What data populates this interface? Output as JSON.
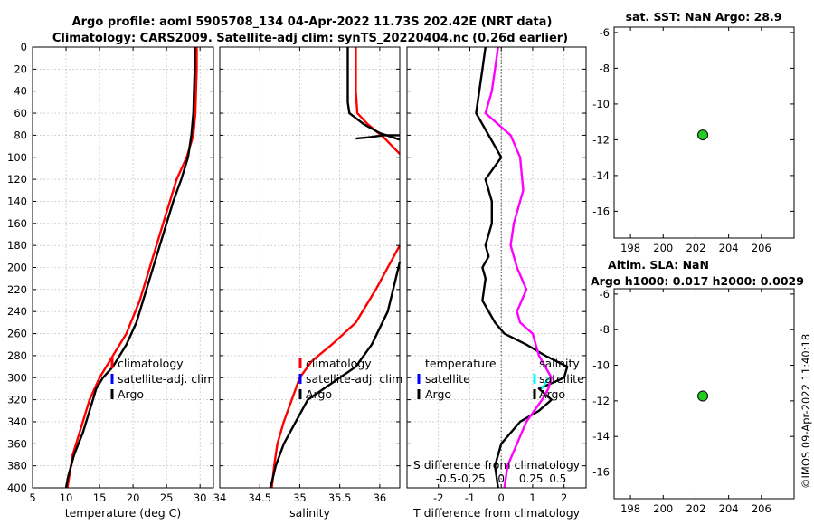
{
  "figure": {
    "title_line1": "Argo profile: aoml 5905708_134 04-Apr-2022 11.73S 202.42E (NRT data)",
    "title_line2": "Climatology: CARS2009. Satellite-adj clim: synTS_20220404.nc (0.26d earlier)",
    "footer": "©IMOS 09-Apr-2022 11:40:18"
  },
  "colors": {
    "climatology": "#ff0000",
    "satellite": "#0000ff",
    "argo": "#000000",
    "salinity_diff": "#ff00ff",
    "satellite_salinity": "#00ffff",
    "marker": "#22cc22"
  },
  "chart_data": [
    {
      "id": "temperature",
      "type": "line",
      "xlabel": "temperature (deg C)",
      "ylabel": "",
      "xlim": [
        5,
        32
      ],
      "ylim": [
        0,
        400
      ],
      "y_reversed": true,
      "xticks": [
        5,
        10,
        15,
        20,
        25,
        30
      ],
      "yticks": [
        0,
        20,
        40,
        60,
        80,
        100,
        120,
        140,
        160,
        180,
        200,
        220,
        240,
        260,
        280,
        300,
        320,
        340,
        360,
        380,
        400
      ],
      "grid": true,
      "legend": [
        "climatology",
        "satellite-adj. clim",
        "Argo"
      ],
      "series": [
        {
          "name": "climatology",
          "color": "#ff0000",
          "x": [
            29.5,
            29.5,
            29.4,
            29.3,
            29.0,
            28.0,
            26.5,
            25.0,
            23.5,
            22.5,
            21.0,
            19.0,
            17.0,
            15.0,
            13.5,
            12.0,
            11.0,
            10.2
          ],
          "y": [
            0,
            20,
            40,
            60,
            80,
            100,
            120,
            150,
            180,
            200,
            230,
            260,
            280,
            300,
            320,
            350,
            370,
            400
          ]
        },
        {
          "name": "Argo",
          "color": "#000000",
          "x": [
            29.2,
            29.2,
            29.1,
            29.0,
            28.7,
            28.2,
            27.2,
            26.0,
            24.5,
            23.5,
            22.5,
            21.5,
            20.5,
            19.0,
            17.0,
            15.5,
            14.5,
            13.5,
            12.5,
            11.2,
            10.3,
            10.0
          ],
          "y": [
            0,
            20,
            40,
            60,
            80,
            100,
            120,
            140,
            170,
            190,
            210,
            230,
            250,
            270,
            290,
            300,
            310,
            330,
            350,
            370,
            390,
            400
          ]
        }
      ]
    },
    {
      "id": "salinity",
      "type": "line",
      "xlabel": "salinity",
      "ylabel": "",
      "xlim": [
        34,
        36.25
      ],
      "ylim": [
        0,
        400
      ],
      "y_reversed": true,
      "xticks": [
        34,
        34.5,
        35,
        35.5,
        36
      ],
      "grid": true,
      "legend": [
        "climatology",
        "satellite-adj. clim",
        "Argo"
      ],
      "series": [
        {
          "name": "climatology",
          "color": "#ff0000",
          "x": [
            35.7,
            35.7,
            35.7,
            35.72,
            35.85,
            36.05,
            36.25,
            null,
            36.25,
            35.95,
            35.7,
            35.4,
            35.15,
            35.0,
            34.9,
            34.8,
            34.72,
            34.68,
            34.65
          ],
          "y": [
            0,
            20,
            40,
            60,
            70,
            82,
            97,
            null,
            180,
            220,
            250,
            270,
            285,
            300,
            320,
            340,
            360,
            380,
            400
          ]
        },
        {
          "name": "Argo",
          "color": "#000000",
          "x": [
            35.6,
            35.6,
            35.6,
            35.62,
            35.8,
            36.0,
            36.25,
            null,
            36.25,
            36.2,
            36.1,
            35.9,
            35.7,
            35.5,
            35.3,
            35.1,
            34.95,
            34.8,
            34.7,
            34.65,
            34.63
          ],
          "y": [
            0,
            30,
            50,
            60,
            70,
            78,
            84,
            null,
            195,
            210,
            240,
            270,
            290,
            300,
            310,
            320,
            340,
            360,
            380,
            395,
            400
          ]
        },
        {
          "name": "Argo (upper)",
          "color": "#000000",
          "x": [
            36.25,
            36.05,
            35.85,
            35.7
          ],
          "y": [
            80,
            80,
            82,
            83
          ]
        }
      ]
    },
    {
      "id": "difference",
      "type": "line",
      "xlabel": "T difference from climatology",
      "top_label": "S difference from climatology",
      "xlim": [
        -3,
        2.7
      ],
      "ylim": [
        0,
        400
      ],
      "y_reversed": true,
      "xticks": [
        -2,
        -1,
        0,
        1,
        2
      ],
      "top_ticks": [
        "-0.5",
        "-0.25",
        "0",
        "0.25",
        "0.5"
      ],
      "grid": true,
      "legend_left": [
        "temperature",
        "satellite",
        "Argo"
      ],
      "legend_right": [
        "salinity",
        "satellite",
        "Argo"
      ],
      "series": [
        {
          "name": "T difference (Argo)",
          "color": "#000000",
          "x": [
            -0.5,
            -0.6,
            -0.7,
            -0.8,
            -0.4,
            0.0,
            -0.5,
            -0.3,
            -0.3,
            -0.5,
            -0.4,
            -0.6,
            -0.5,
            -0.6,
            -0.2,
            0.1,
            0.8,
            1.4,
            2.1,
            2.0,
            1.2,
            1.6,
            1.2,
            0.6,
            0.0,
            -0.2,
            -0.1
          ],
          "y": [
            0,
            20,
            40,
            60,
            80,
            100,
            120,
            140,
            160,
            180,
            190,
            200,
            210,
            230,
            250,
            260,
            270,
            280,
            290,
            300,
            310,
            320,
            330,
            340,
            360,
            380,
            400
          ]
        },
        {
          "name": "S difference (Argo)",
          "color": "#ff00ff",
          "x": [
            -0.1,
            -0.2,
            -0.3,
            -0.5,
            0.3,
            0.6,
            0.7,
            0.4,
            0.3,
            0.5,
            0.8,
            0.5,
            0.6,
            1.0,
            1.2,
            1.6,
            1.5,
            1.3,
            0.8,
            0.5,
            0.2,
            0.1
          ],
          "y": [
            0,
            20,
            40,
            60,
            80,
            100,
            130,
            160,
            180,
            200,
            220,
            240,
            250,
            260,
            280,
            300,
            310,
            320,
            340,
            360,
            380,
            400
          ]
        },
        {
          "name": "satellite salinity",
          "color": "#00ffff",
          "x": [
            1.5,
            1.3
          ],
          "y": [
            300,
            310
          ]
        }
      ]
    },
    {
      "id": "sst_map",
      "type": "scatter",
      "title": "sat. SST: NaN Argo: 28.9",
      "xlim": [
        197,
        208
      ],
      "ylim": [
        -17.5,
        -5.7
      ],
      "xticks": [
        198,
        200,
        202,
        204,
        206
      ],
      "yticks": [
        -6,
        -8,
        -10,
        -12,
        -14,
        -16
      ],
      "points": [
        {
          "x": 202.42,
          "y": -11.73
        }
      ]
    },
    {
      "id": "sla_map",
      "type": "scatter",
      "title_line1": "Altim. SLA: NaN",
      "title_line2": "Argo h1000: 0.017 h2000: 0.0029",
      "xlim": [
        197,
        208
      ],
      "ylim": [
        -17.5,
        -5.7
      ],
      "xticks": [
        198,
        200,
        202,
        204,
        206
      ],
      "yticks": [
        -6,
        -8,
        -10,
        -12,
        -14,
        -16
      ],
      "points": [
        {
          "x": 202.42,
          "y": -11.73
        }
      ]
    }
  ]
}
